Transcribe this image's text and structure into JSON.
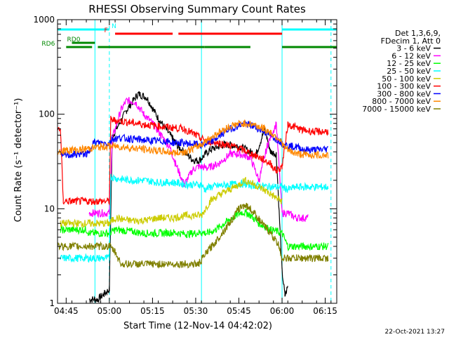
{
  "chart_data": {
    "type": "line",
    "title": "RHESSI Observing Summary Count Rates",
    "xlabel": "Start Time (12-Nov-14 04:42:02)",
    "ylabel": "Count Rate (s⁻¹ detector⁻¹)",
    "x_unit": "minutes after 04:42:02",
    "xlim": [
      0,
      97
    ],
    "ylim": [
      1,
      1000
    ],
    "yscale": "log",
    "x_ticks": [
      {
        "value": 3,
        "label": "04:45"
      },
      {
        "value": 18,
        "label": "05:00"
      },
      {
        "value": 33,
        "label": "05:15"
      },
      {
        "value": 48,
        "label": "05:30"
      },
      {
        "value": 63,
        "label": "05:45"
      },
      {
        "value": 78,
        "label": "06:00"
      },
      {
        "value": 93,
        "label": "06:15"
      }
    ],
    "y_ticks": [
      {
        "value": 1,
        "label": "1"
      },
      {
        "value": 10,
        "label": "10"
      },
      {
        "value": 100,
        "label": "100"
      },
      {
        "value": 1000,
        "label": "1000"
      }
    ],
    "legend_header": [
      "Det 1,3,6,9,",
      "FDecim 1, Att 0"
    ],
    "legend_position": "right",
    "series": [
      {
        "name": "3 - 6 keV",
        "color": "#000000",
        "x": [
          0,
          10,
          11,
          14,
          18,
          19,
          24,
          28,
          31,
          35,
          40,
          42,
          47,
          49,
          53,
          58,
          63,
          67,
          69,
          72,
          74,
          76,
          78,
          79,
          80,
          81,
          82,
          84,
          97
        ],
        "y": [
          null,
          null,
          1.1,
          1.1,
          1.4,
          58,
          110,
          165,
          150,
          90,
          55,
          45,
          33,
          32,
          42,
          48,
          46,
          40,
          38,
          70,
          40,
          38,
          2.2,
          1.2,
          1.5,
          null,
          null,
          null,
          null
        ]
      },
      {
        "name": "6 - 12 keV",
        "color": "#ff00ff",
        "x": [
          11,
          12,
          14,
          17,
          18,
          19,
          22,
          24,
          27,
          30,
          33,
          36,
          39,
          41,
          44,
          47,
          49,
          52,
          56,
          60,
          63,
          67,
          70,
          73,
          76,
          78,
          80,
          83,
          85,
          87
        ],
        "y": [
          9,
          9,
          9,
          9,
          9,
          55,
          110,
          140,
          135,
          100,
          80,
          60,
          45,
          30,
          18,
          26,
          28,
          27,
          30,
          38,
          38,
          35,
          20,
          48,
          80,
          9,
          9,
          8,
          8,
          8
        ]
      },
      {
        "name": "12 - 25 keV",
        "color": "#00ff00",
        "x": [
          0,
          1,
          2,
          4,
          8,
          10,
          11,
          14,
          18,
          20,
          25,
          30,
          35,
          40,
          45,
          50,
          52,
          55,
          58,
          62,
          64,
          66,
          68,
          70,
          72,
          74,
          76,
          78,
          80,
          83,
          88,
          90,
          94
        ],
        "y": [
          null,
          6,
          6,
          6,
          6,
          6,
          5.5,
          5.5,
          5.5,
          6,
          5.8,
          5.5,
          5.5,
          5.6,
          5.4,
          5.6,
          5.5,
          6,
          7,
          8.5,
          9.2,
          9,
          8,
          7,
          6.5,
          6,
          5.8,
          5.5,
          4,
          4,
          4,
          4,
          4
        ]
      },
      {
        "name": "25 - 50 keV",
        "color": "#00ffff",
        "x": [
          0,
          1,
          4,
          8,
          10,
          11,
          14,
          18,
          18.5,
          20,
          25,
          30,
          35,
          40,
          45,
          50,
          51,
          53,
          56,
          60,
          63,
          66,
          70,
          74,
          77,
          78,
          80,
          83,
          88,
          92,
          94
        ],
        "y": [
          null,
          3,
          3,
          3,
          3,
          3,
          3,
          3,
          22,
          21,
          20,
          20,
          19,
          19,
          18,
          18,
          16,
          17,
          17.5,
          18,
          18.5,
          18,
          17.5,
          17,
          17,
          17,
          16,
          17,
          17,
          17,
          17
        ]
      },
      {
        "name": "50 - 100 keV",
        "color": "#cccc00",
        "x": [
          1,
          2,
          5,
          8,
          10,
          11,
          14,
          18,
          20,
          25,
          30,
          35,
          40,
          45,
          50,
          53,
          56,
          60,
          63,
          65,
          67,
          70,
          73,
          76,
          78,
          80,
          83
        ],
        "y": [
          7,
          7,
          7,
          7,
          7,
          7,
          7,
          7,
          8,
          7.5,
          7.5,
          8,
          8,
          8.5,
          8.5,
          12,
          14,
          16,
          18,
          20,
          19,
          17,
          15,
          13,
          12,
          null,
          null
        ]
      },
      {
        "name": "100 - 300 keV",
        "color": "#ff0000",
        "x": [
          0,
          1,
          2,
          4,
          8,
          10,
          11,
          14,
          18,
          18.5,
          20,
          25,
          30,
          35,
          40,
          44,
          48,
          50,
          52,
          55,
          58,
          62,
          66,
          70,
          74,
          76,
          78,
          80,
          82,
          85,
          90,
          94
        ],
        "y": [
          70,
          70,
          12,
          12,
          12,
          12,
          12,
          12,
          12,
          88,
          86,
          82,
          78,
          75,
          72,
          70,
          60,
          55,
          52,
          50,
          48,
          45,
          40,
          35,
          30,
          25,
          28,
          78,
          74,
          68,
          65,
          66
        ]
      },
      {
        "name": "300 - 800 keV",
        "color": "#0000ff",
        "x": [
          0,
          1,
          4,
          8,
          10,
          11,
          12,
          14,
          18,
          19,
          22,
          25,
          28,
          31,
          34,
          37,
          40,
          43,
          46,
          48,
          50,
          53,
          56,
          59,
          62,
          64,
          66,
          68,
          70,
          72,
          74,
          76,
          78,
          80,
          83,
          86,
          90,
          94
        ],
        "y": [
          null,
          36,
          37,
          38,
          38,
          38,
          50,
          50,
          49,
          55,
          56,
          55,
          54,
          53,
          52,
          52,
          50,
          50,
          49,
          48,
          47,
          50,
          58,
          68,
          74,
          78,
          78,
          75,
          70,
          65,
          60,
          55,
          50,
          46,
          45,
          42,
          42,
          43
        ]
      },
      {
        "name": "800 - 7000 keV",
        "color": "#ff8800",
        "x": [
          0,
          2,
          5,
          8,
          10,
          12,
          15,
          18,
          20,
          23,
          26,
          29,
          32,
          35,
          38,
          41,
          44,
          47,
          50,
          53,
          56,
          59,
          62,
          65,
          68,
          71,
          74,
          77,
          79,
          81,
          84,
          87,
          90,
          94
        ],
        "y": [
          40,
          41,
          42,
          42,
          43,
          44,
          45,
          46,
          46,
          45,
          44,
          43,
          42,
          41,
          40,
          39,
          40,
          43,
          48,
          56,
          64,
          72,
          78,
          80,
          78,
          72,
          64,
          55,
          44,
          40,
          38,
          37,
          37,
          37
        ]
      },
      {
        "name": "7000 - 15000 keV",
        "color": "#808000",
        "x": [
          0,
          2,
          5,
          8,
          10,
          12,
          14,
          18,
          20,
          22,
          25,
          28,
          31,
          34,
          37,
          40,
          43,
          46,
          49,
          52,
          55,
          58,
          61,
          63,
          65,
          67,
          69,
          71,
          73,
          75,
          77,
          78,
          80,
          83,
          88,
          94
        ],
        "y": [
          4,
          4,
          4,
          4,
          4,
          4,
          4,
          4,
          3.5,
          2.6,
          2.6,
          2.6,
          2.6,
          2.6,
          2.6,
          2.6,
          2.6,
          2.6,
          2.6,
          3.5,
          4.5,
          6,
          8,
          10,
          11,
          10,
          8.5,
          7,
          6,
          5,
          4,
          3,
          3,
          3,
          3,
          3
        ]
      }
    ],
    "state_bars": [
      {
        "label": "N",
        "color": "#00ffff",
        "segments": [
          [
            0,
            18
          ],
          [
            78,
            97
          ]
        ]
      },
      {
        "label": "F",
        "color": "#ff0000",
        "segments": [
          [
            20,
            40
          ],
          [
            42,
            78
          ]
        ]
      },
      {
        "label": "RD0",
        "color": "#008800",
        "segments": [
          [
            5,
            13
          ]
        ]
      },
      {
        "label": "RD6",
        "color": "#008800",
        "segments": [
          [
            3,
            12
          ],
          [
            14,
            51
          ],
          [
            51,
            67
          ],
          [
            78,
            97
          ]
        ]
      }
    ],
    "vertical_markers": [
      {
        "x": 18,
        "style": "dashed",
        "color": "#00ffff"
      },
      {
        "x": 13,
        "style": "solid",
        "color": "#00ffff"
      },
      {
        "x": 50,
        "style": "solid",
        "color": "#00ffff"
      },
      {
        "x": 78,
        "style": "solid",
        "color": "#00ffff"
      },
      {
        "x": 95,
        "style": "dashed",
        "color": "#00ffff"
      }
    ]
  },
  "footer": {
    "timestamp": "22-Oct-2021 13:27"
  }
}
